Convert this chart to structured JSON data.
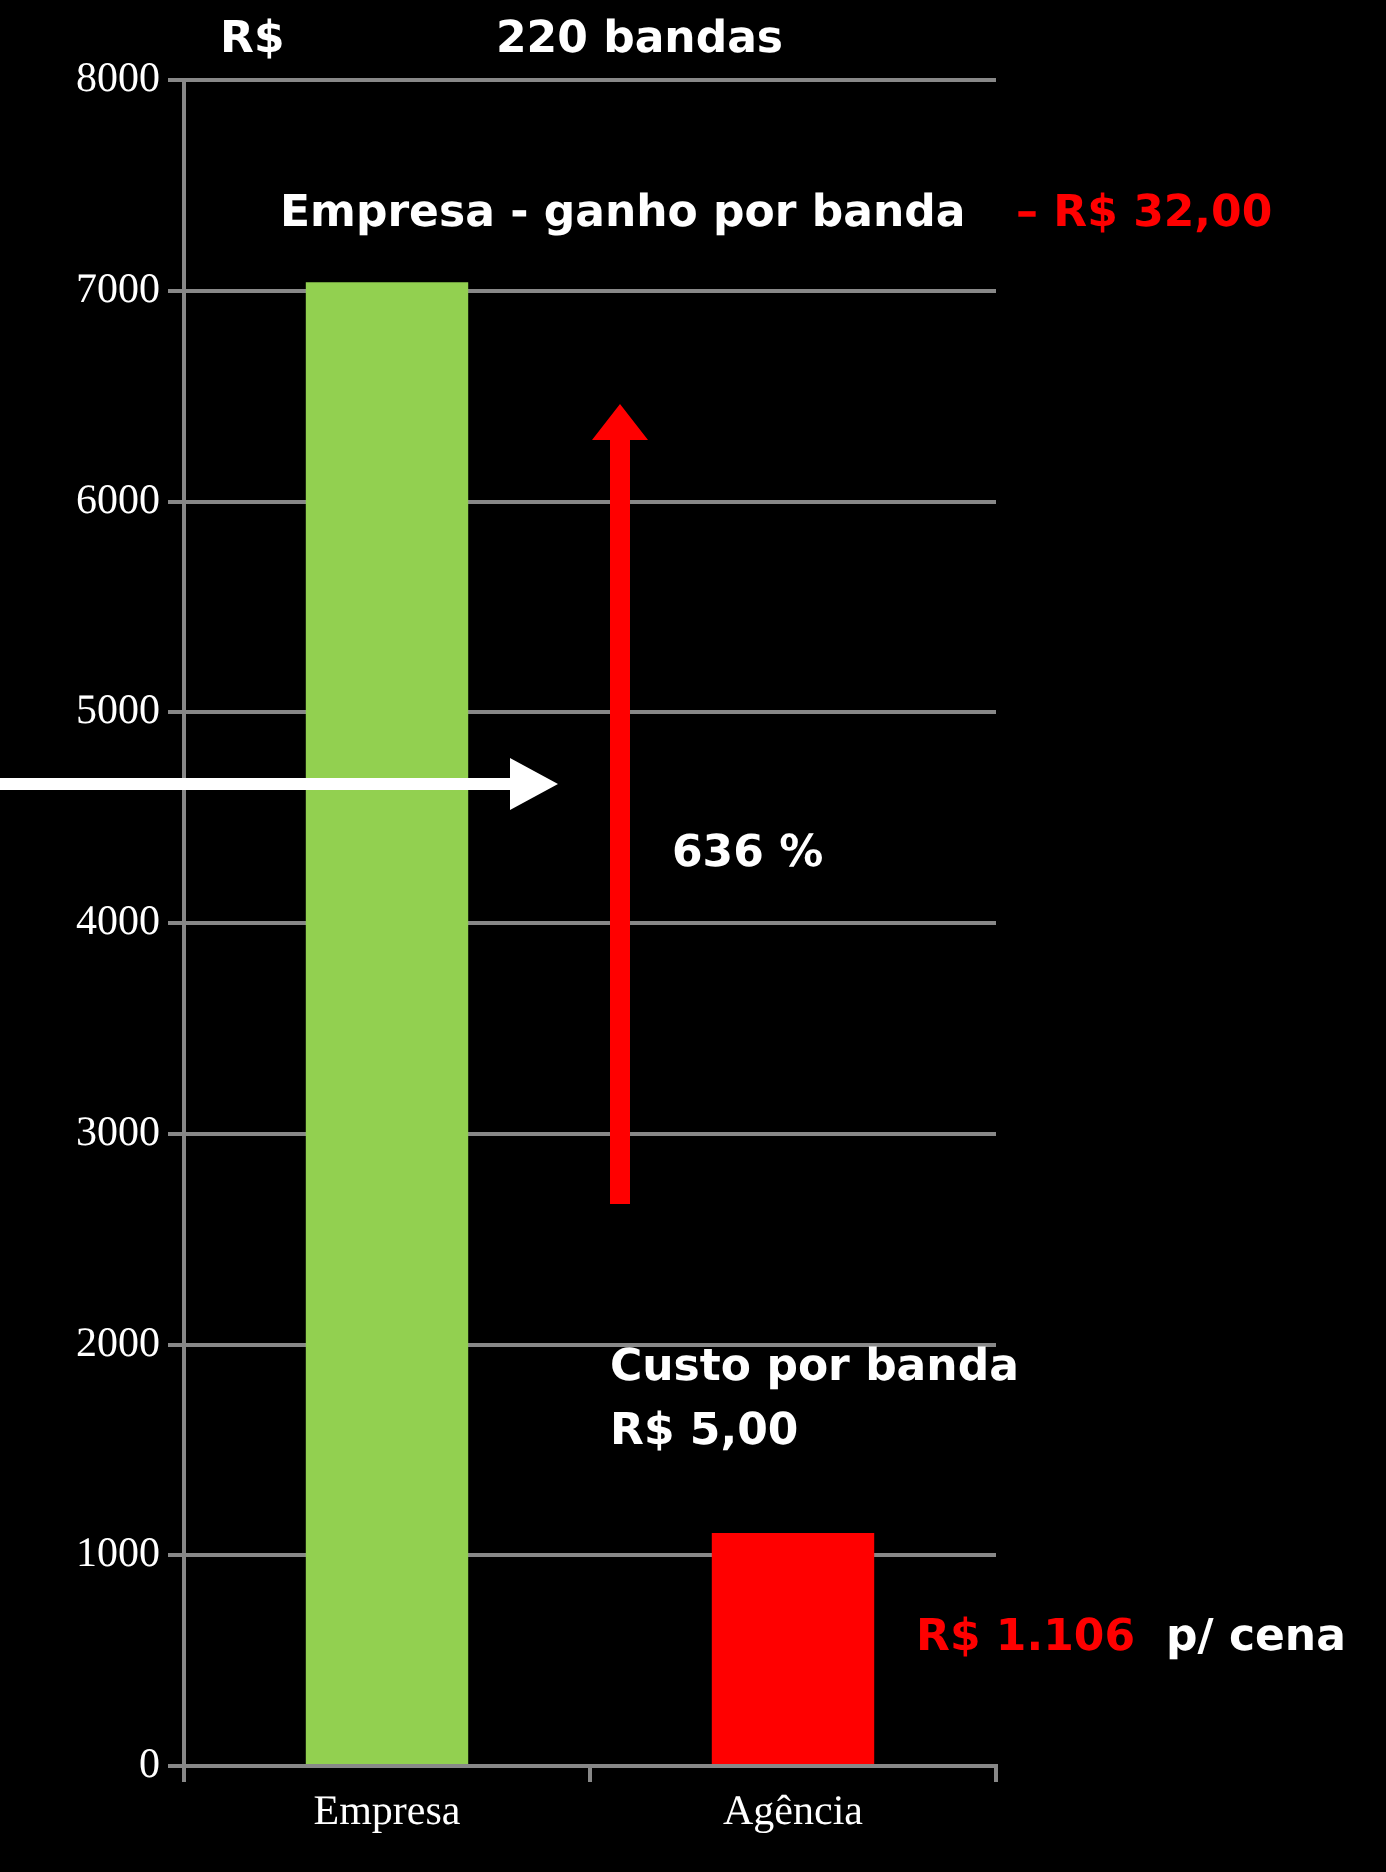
{
  "chart_data": {
    "type": "bar",
    "title": "220 bandas",
    "ylabel": "R$",
    "categories": [
      "Empresa",
      "Agência"
    ],
    "values": [
      7040,
      1106
    ],
    "colors": [
      "#92d050",
      "#ff0000"
    ],
    "ylim": [
      0,
      8000
    ],
    "yticks": [
      0,
      1000,
      2000,
      3000,
      4000,
      5000,
      6000,
      7000,
      8000
    ],
    "grid": "y",
    "legend": false,
    "annotations": [
      "Empresa - ganho por banda",
      "– R$ 32,00",
      "636 %",
      "Custo por banda",
      "R$ 5,00",
      "R$ 1.106",
      "p/ cena"
    ]
  }
}
